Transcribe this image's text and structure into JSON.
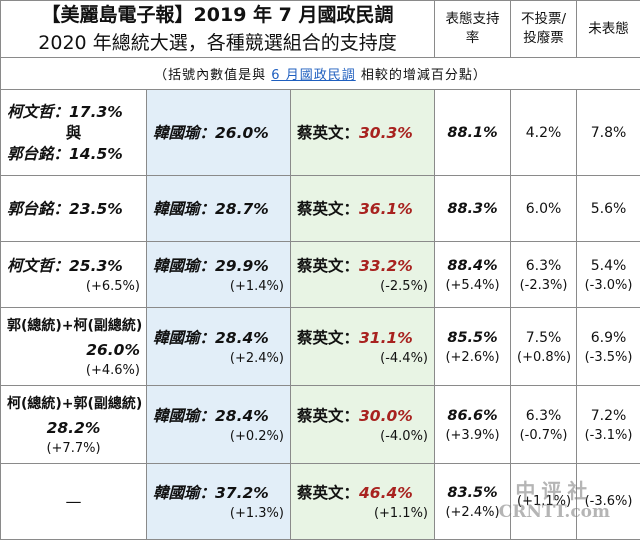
{
  "header": {
    "title_line1": "【美麗島電子報】2019 年 7 月國政民調",
    "title_line2": "2020 年總統大選，各種競選組合的支持度",
    "col_support": "表態支持率",
    "col_novote_line1": "不投票/",
    "col_novote_line2": "投廢票",
    "col_undecided": "未表態"
  },
  "note": {
    "prefix": "（括號內數值是與",
    "link": "6 月國政民調",
    "suffix": "相較的增減百分點）"
  },
  "rows": [
    {
      "cand_line1": "柯文哲：17.3%",
      "cand_line2": "與",
      "cand_line3": "郭台銘：14.5%",
      "cand_change": "",
      "han": "韓國瑜：26.0%",
      "han_change": "",
      "tsai_name": "蔡英文：",
      "tsai_value": "30.3%",
      "tsai_change": "",
      "support": "88.1%",
      "support_change": "",
      "novote": "4.2%",
      "novote_change": "",
      "undecided": "7.8%",
      "undecided_change": ""
    },
    {
      "cand_line1": "郭台銘：23.5%",
      "han": "韓國瑜：28.7%",
      "tsai_name": "蔡英文：",
      "tsai_value": "36.1%",
      "support": "88.3%",
      "novote": "6.0%",
      "undecided": "5.6%"
    },
    {
      "cand_line1": "柯文哲：25.3%",
      "cand_change": "(+6.5%)",
      "han": "韓國瑜：29.9%",
      "han_change": "(+1.4%)",
      "tsai_name": "蔡英文：",
      "tsai_value": "33.2%",
      "tsai_change": "(-2.5%)",
      "support": "88.4%",
      "support_change": "(+5.4%)",
      "novote": "6.3%",
      "novote_change": "(-2.3%)",
      "undecided": "5.4%",
      "undecided_change": "(-3.0%)"
    },
    {
      "cand_combo": "郭(總統)+柯(副總統)",
      "cand_line2": "26.0%",
      "cand_change": "(+4.6%)",
      "han": "韓國瑜：28.4%",
      "han_change": "(+2.4%)",
      "tsai_name": "蔡英文：",
      "tsai_value": "31.1%",
      "tsai_change": "(-4.4%)",
      "support": "85.5%",
      "support_change": "(+2.6%)",
      "novote": "7.5%",
      "novote_change": "(+0.8%)",
      "undecided": "6.9%",
      "undecided_change": "(-3.5%)"
    },
    {
      "cand_combo": "柯(總統)+郭(副總統)",
      "cand_line2": "28.2%",
      "cand_change": "(+7.7%)",
      "han": "韓國瑜：28.4%",
      "han_change": "(+0.2%)",
      "tsai_name": "蔡英文：",
      "tsai_value": "30.0%",
      "tsai_change": "(-4.0%)",
      "support": "86.6%",
      "support_change": "(+3.9%)",
      "novote": "6.3%",
      "novote_change": "(-0.7%)",
      "undecided": "7.2%",
      "undecided_change": "(-3.1%)"
    },
    {
      "cand_line1": "—",
      "han": "韓國瑜：37.2%",
      "han_change": "(+1.3%)",
      "tsai_name": "蔡英文：",
      "tsai_value": "46.4%",
      "tsai_change": "(+1.1%)",
      "support": "83.5%",
      "support_change": "(+2.4%)",
      "novote": "",
      "novote_change": "(+1.1%)",
      "undecided": "",
      "undecided_change": "(-3.6%)"
    }
  ],
  "watermark": {
    "cn": "中评社",
    "en": "CRNTT.com"
  },
  "colors": {
    "han_bg": "#e2eef8",
    "tsai_bg": "#e8f4e4",
    "tsai_value": "#a8221f",
    "link": "#1f5fbf"
  }
}
